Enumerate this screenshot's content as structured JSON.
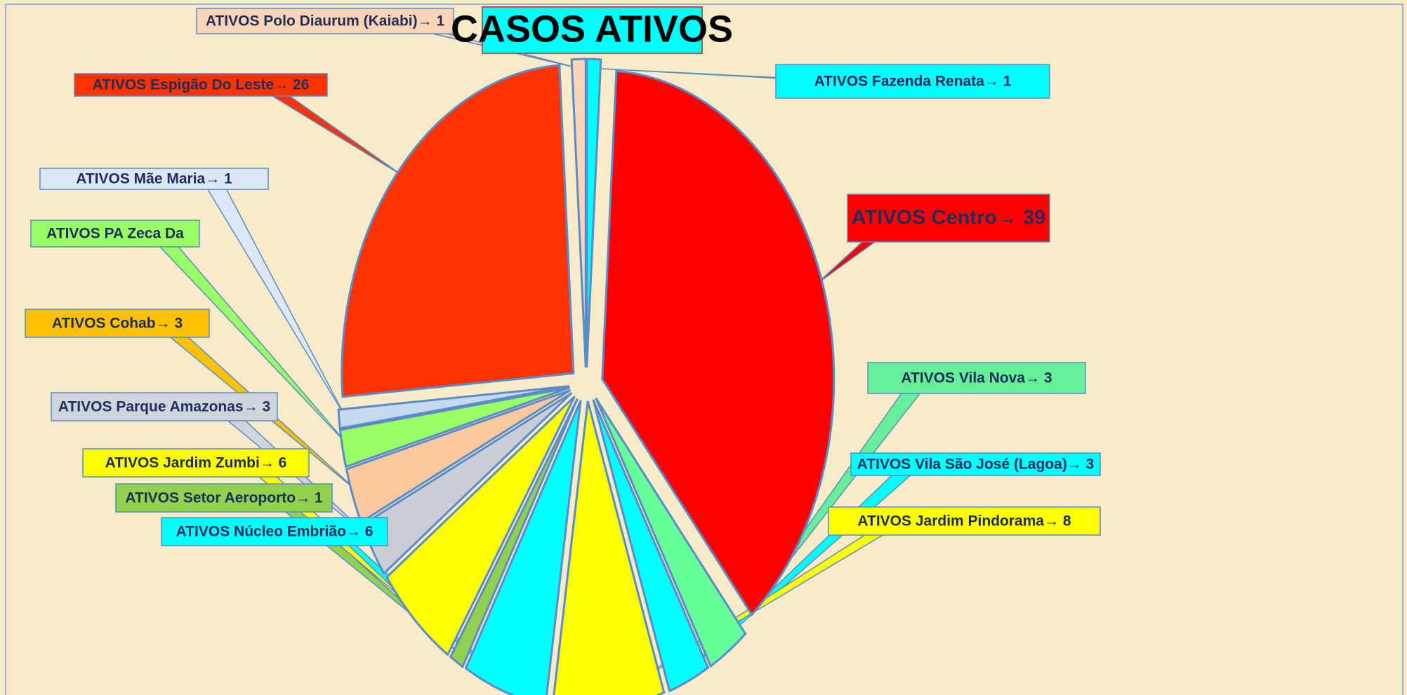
{
  "chart_data": {
    "type": "pie",
    "title": "CASOS ATIVOS",
    "categories": [
      "Fazenda Renata",
      "Centro",
      "Vila Nova",
      "Vila São José (Lagoa)",
      "Jardim Pindorama",
      "Núcleo Embrião",
      "Setor Aeroporto",
      "Jardim Zumbi",
      "Parque Amazonas",
      "Cohab",
      "PA Zeca Da",
      "Mãe Maria",
      "Espigão Do Leste",
      "Polo Diaurum (Kaiabi)"
    ],
    "labels": [
      "ATIVOS Fazenda Renata→ 1",
      "ATIVOS Centro→ 39",
      "ATIVOS Vila Nova→  3",
      "ATIVOS Vila São José (Lagoa)→ 3",
      "ATIVOS Jardim Pindorama→ 8",
      "ATIVOS Núcleo Embrião→ 6",
      "ATIVOS Setor Aeroporto→ 1",
      "ATIVOS Jardim Zumbi→ 6",
      "ATIVOS Parque Amazonas→ 3",
      "ATIVOS Cohab→ 3",
      "ATIVOS PA Zeca Da",
      "ATIVOS Mãe Maria→ 1",
      "ATIVOS Espigão Do Leste→ 26",
      "ATIVOS Polo Diaurum (Kaiabi)→ 1"
    ],
    "values": [
      1,
      39,
      3,
      3,
      8,
      6,
      1,
      6,
      3,
      3,
      2,
      1,
      26,
      1
    ],
    "colors": [
      "#00ffff",
      "#ff0000",
      "#66ff99",
      "#00ffff",
      "#ffff00",
      "#00ffff",
      "#92d050",
      "#ffff00",
      "#c8cdd6",
      "#fcc99f",
      "#99ff66",
      "#c6d9f1",
      "#ff3300",
      "#fbd5b5"
    ],
    "label_colors": [
      "#00ffff",
      "#ff0000",
      "#66ee99",
      "#00ffff",
      "#ffff00",
      "#00ffff",
      "#92d050",
      "#ffff00",
      "#d0d5dd",
      "#ffc000",
      "#99ff66",
      "#dbe8f7",
      "#ff3300",
      "#fbd5b5"
    ]
  }
}
